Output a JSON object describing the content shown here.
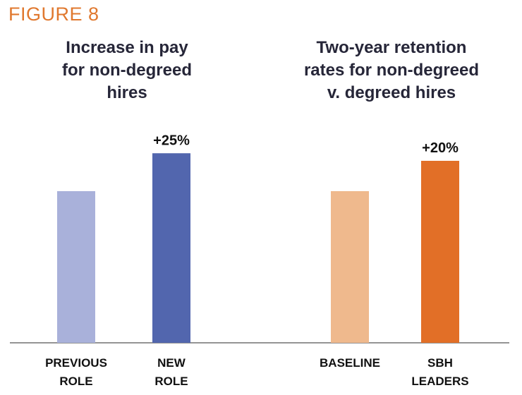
{
  "figure_label": "FIGURE 8",
  "colors": {
    "figure_label": "#E0782E",
    "baseline_axis": "#555555"
  },
  "chart_data": [
    {
      "type": "bar",
      "title": "Increase in pay for non-degreed hires",
      "title_lines": [
        "Increase in pay",
        "for non-degreed",
        "hires"
      ],
      "categories": [
        "PREVIOUS ROLE",
        "NEW ROLE"
      ],
      "category_lines": [
        [
          "PREVIOUS",
          "ROLE"
        ],
        [
          "NEW",
          "ROLE"
        ]
      ],
      "values": [
        100,
        125
      ],
      "data_labels": [
        "",
        "+25%"
      ],
      "colors": [
        "#A9B1DA",
        "#5266AE"
      ],
      "ylim": [
        0,
        130
      ],
      "xlabel": "",
      "ylabel": ""
    },
    {
      "type": "bar",
      "title": "Two-year retention rates for non-degreed v. degreed hires",
      "title_lines": [
        "Two-year retention",
        "rates for non-degreed",
        "v. degreed hires"
      ],
      "categories": [
        "BASELINE",
        "SBH LEADERS"
      ],
      "category_lines": [
        [
          "BASELINE"
        ],
        [
          "SBH",
          "LEADERS"
        ]
      ],
      "values": [
        100,
        120
      ],
      "data_labels": [
        "",
        "+20%"
      ],
      "colors": [
        "#EFB98D",
        "#E26F27"
      ],
      "ylim": [
        0,
        130
      ],
      "xlabel": "",
      "ylabel": ""
    }
  ]
}
